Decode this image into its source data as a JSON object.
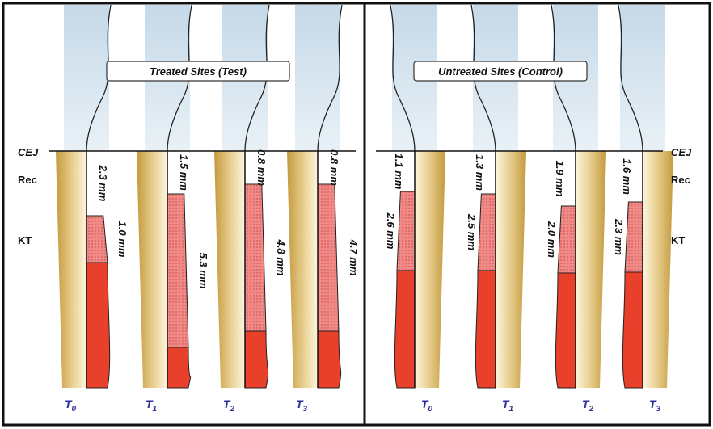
{
  "side_labels": {
    "cej": "CEJ",
    "rec": "Rec",
    "kt": "KT"
  },
  "panels": [
    {
      "title": "Treated Sites (Test)",
      "teeth": [
        {
          "time": "T",
          "sub": "0",
          "rec": "2.3 mm",
          "kt": "1.0 mm"
        },
        {
          "time": "T",
          "sub": "1",
          "rec": "1.5 mm",
          "kt": "5.3 mm"
        },
        {
          "time": "T",
          "sub": "2",
          "rec": "0.8 mm",
          "kt": "4.8 mm"
        },
        {
          "time": "T",
          "sub": "3",
          "rec": "0.8 mm",
          "kt": "4.7 mm"
        }
      ]
    },
    {
      "title": "Untreated Sites (Control)",
      "teeth": [
        {
          "time": "T",
          "sub": "0",
          "rec": "1.1 mm",
          "kt": "2.6 mm"
        },
        {
          "time": "T",
          "sub": "1",
          "rec": "1.3 mm",
          "kt": "2.5 mm"
        },
        {
          "time": "T",
          "sub": "2",
          "rec": "1.9 mm",
          "kt": "2.0 mm"
        },
        {
          "time": "T",
          "sub": "3",
          "rec": "1.6 mm",
          "kt": "2.3 mm"
        }
      ]
    }
  ]
}
